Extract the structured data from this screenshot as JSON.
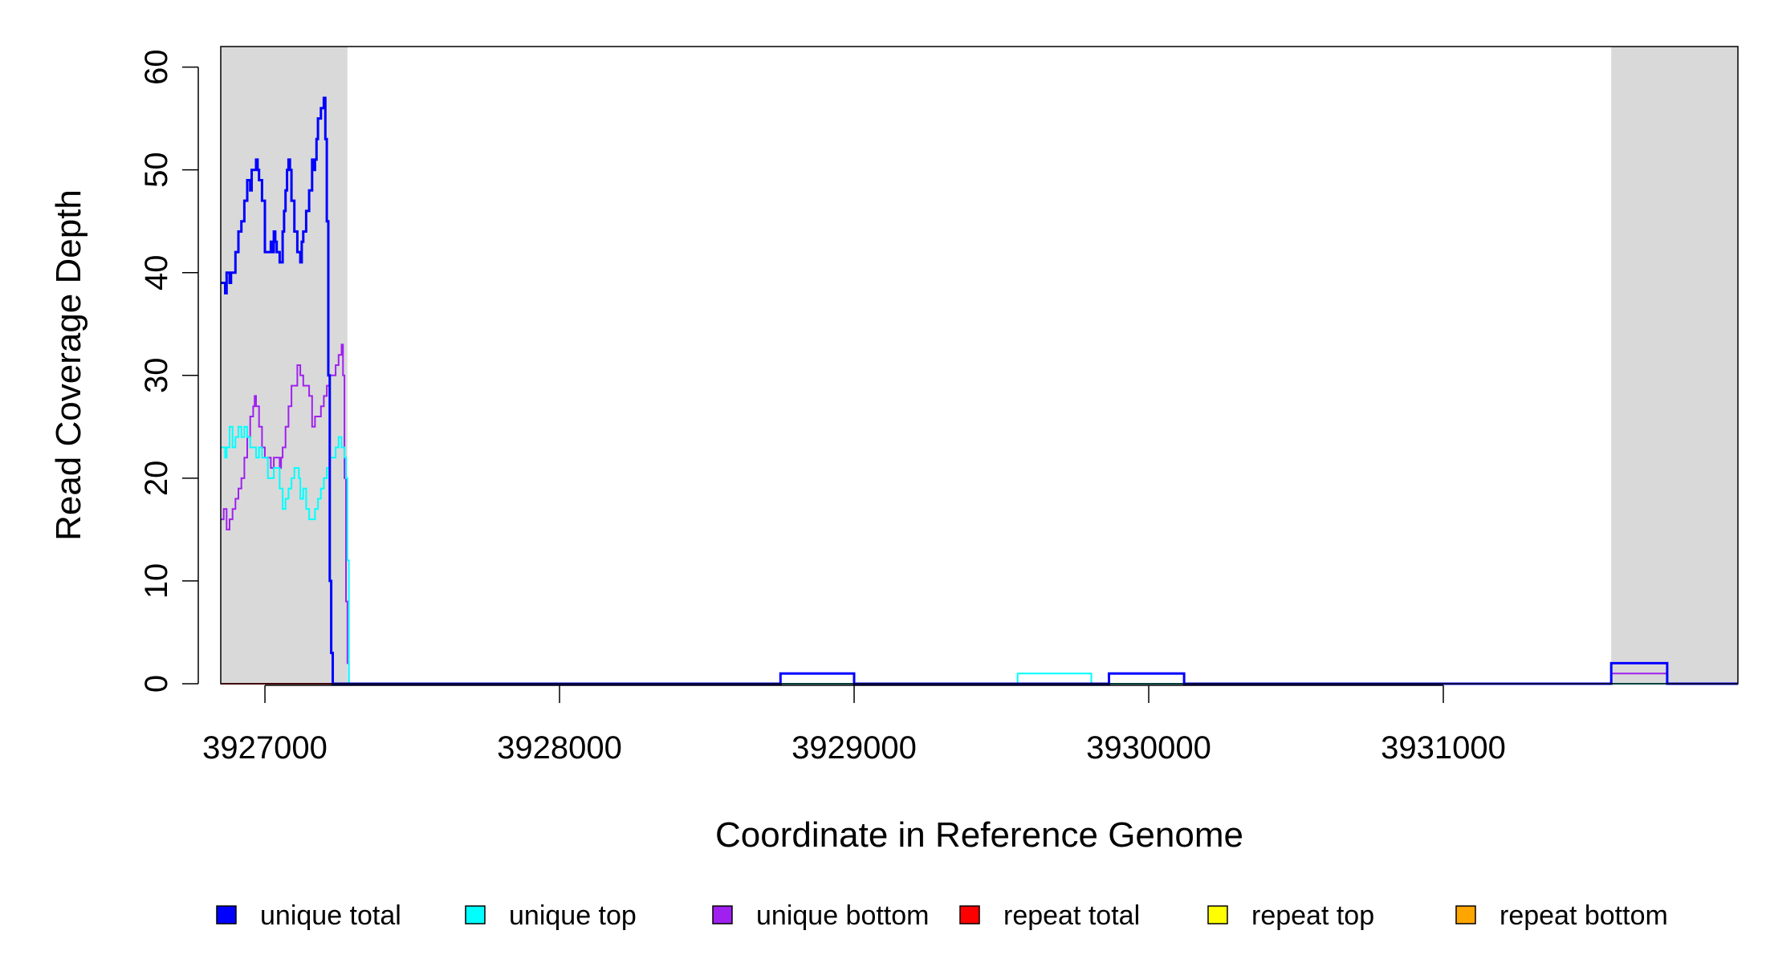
{
  "chart_data": {
    "type": "line",
    "title": "",
    "xlabel": "Coordinate in Reference Genome",
    "ylabel": "Read Coverage Depth",
    "xlim": [
      3926850,
      3932000
    ],
    "ylim": [
      0,
      62
    ],
    "x_ticks": [
      3927000,
      3928000,
      3929000,
      3930000,
      3931000
    ],
    "x_tick_labels": [
      "3927000",
      "3928000",
      "3929000",
      "3930000",
      "3931000"
    ],
    "y_ticks": [
      0,
      10,
      20,
      30,
      40,
      50,
      60
    ],
    "y_tick_labels": [
      "0",
      "10",
      "20",
      "30",
      "40",
      "50",
      "60"
    ],
    "grid": false,
    "legend_position": "bottom",
    "shaded_regions": [
      {
        "x_start": 3926850,
        "x_end": 3927280,
        "color": "#d9d9d9"
      },
      {
        "x_start": 3931570,
        "x_end": 3932000,
        "color": "#d9d9d9"
      }
    ],
    "series": [
      {
        "name": "unique total",
        "color": "#0000ff",
        "stroke_width": 3,
        "x": [
          3926850,
          3926865,
          3926870,
          3926880,
          3926885,
          3926890,
          3926900,
          3926910,
          3926920,
          3926930,
          3926940,
          3926950,
          3926955,
          3926960,
          3926970,
          3926975,
          3926980,
          3926990,
          3927000,
          3927010,
          3927020,
          3927025,
          3927030,
          3927035,
          3927040,
          3927050,
          3927060,
          3927065,
          3927070,
          3927075,
          3927080,
          3927085,
          3927090,
          3927100,
          3927110,
          3927120,
          3927125,
          3927130,
          3927140,
          3927150,
          3927160,
          3927165,
          3927170,
          3927175,
          3927180,
          3927190,
          3927200,
          3927205,
          3927210,
          3927215,
          3927220,
          3927225,
          3927230,
          3927240,
          3927250,
          3927255,
          3927260,
          3927265,
          3927270,
          3927275,
          3927280,
          3927285,
          3928750,
          3929000,
          3929555,
          3929805,
          3929865,
          3930120,
          3931570,
          3931760,
          3932000
        ],
        "y": [
          39,
          38,
          40,
          39,
          40,
          40,
          42,
          44,
          45,
          47,
          49,
          48,
          50,
          50,
          51,
          50,
          49,
          47,
          42,
          42,
          43,
          42,
          44,
          43,
          42,
          41,
          44,
          46,
          48,
          50,
          51,
          50,
          47,
          44,
          42,
          41,
          43,
          44,
          46,
          48,
          51,
          50,
          51,
          53,
          55,
          56,
          57,
          53,
          45,
          30,
          10,
          3,
          0,
          0,
          0,
          0,
          0,
          0,
          0,
          0,
          0,
          0,
          1,
          0,
          0,
          0,
          1,
          0,
          2,
          0,
          0
        ]
      },
      {
        "name": "unique top",
        "color": "#00ffff",
        "stroke_width": 2,
        "x": [
          3926850,
          3926865,
          3926870,
          3926880,
          3926890,
          3926900,
          3926910,
          3926920,
          3926930,
          3926940,
          3926950,
          3926960,
          3926970,
          3926980,
          3926990,
          3927000,
          3927010,
          3927020,
          3927030,
          3927040,
          3927050,
          3927060,
          3927065,
          3927070,
          3927080,
          3927090,
          3927100,
          3927110,
          3927115,
          3927120,
          3927130,
          3927140,
          3927150,
          3927160,
          3927170,
          3927180,
          3927190,
          3927200,
          3927210,
          3927220,
          3927230,
          3927240,
          3927250,
          3927260,
          3927270,
          3927275,
          3927280,
          3927285,
          3929555,
          3929805,
          3932000
        ],
        "y": [
          23,
          22,
          23,
          25,
          23,
          24,
          25,
          24,
          25,
          24,
          23,
          23,
          22,
          23,
          22,
          22,
          20,
          20,
          21,
          21,
          19,
          17,
          17,
          18,
          19,
          20,
          21,
          21,
          20,
          18,
          19,
          17,
          16,
          16,
          17,
          18,
          19,
          20,
          21,
          22,
          22,
          23,
          24,
          23,
          22,
          20,
          12,
          0,
          1,
          0,
          0
        ]
      },
      {
        "name": "unique bottom",
        "color": "#a020f0",
        "stroke_width": 2,
        "x": [
          3926850,
          3926860,
          3926870,
          3926880,
          3926890,
          3926900,
          3926910,
          3926920,
          3926930,
          3926940,
          3926950,
          3926960,
          3926965,
          3926970,
          3926980,
          3926990,
          3927000,
          3927010,
          3927020,
          3927030,
          3927040,
          3927050,
          3927055,
          3927060,
          3927070,
          3927080,
          3927090,
          3927100,
          3927110,
          3927120,
          3927130,
          3927140,
          3927150,
          3927160,
          3927170,
          3927180,
          3927190,
          3927200,
          3927210,
          3927220,
          3927230,
          3927240,
          3927250,
          3927255,
          3927260,
          3927265,
          3927270,
          3927275,
          3927280,
          3927285,
          3928750,
          3929000,
          3929865,
          3930120,
          3931570,
          3931760,
          3932000
        ],
        "y": [
          16,
          17,
          15,
          16,
          17,
          18,
          19,
          20,
          22,
          24,
          26,
          27,
          28,
          27,
          25,
          23,
          22,
          22,
          21,
          22,
          22,
          21,
          22,
          23,
          25,
          27,
          29,
          29,
          31,
          30,
          29,
          29,
          28,
          25,
          26,
          26,
          27,
          28,
          29,
          30,
          30,
          31,
          32,
          32,
          33,
          30,
          20,
          8,
          2,
          0,
          1,
          0,
          1,
          0,
          1,
          0,
          0
        ]
      },
      {
        "name": "repeat total",
        "color": "#ff0000",
        "stroke_width": 2,
        "x": [
          3926850,
          3932000
        ],
        "y": [
          0,
          0
        ]
      },
      {
        "name": "repeat top",
        "color": "#ffff00",
        "stroke_width": 2,
        "x": [
          3926850,
          3932000
        ],
        "y": [
          0,
          0
        ]
      },
      {
        "name": "repeat bottom",
        "color": "#ffa500",
        "stroke_width": 2,
        "x": [
          3926850,
          3932000
        ],
        "y": [
          0,
          0
        ]
      }
    ]
  }
}
